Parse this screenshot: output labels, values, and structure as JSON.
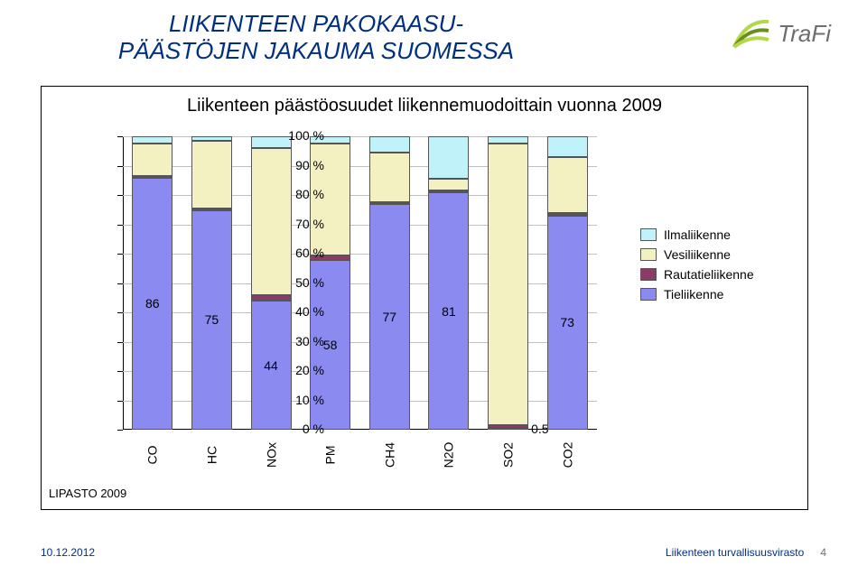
{
  "title_line1": "LIIKENTEEN PAKOKAASU-",
  "title_line2": "PÄÄSTÖJEN JAKAUMA SUOMESSA",
  "logo_text": "TraFi",
  "chart": {
    "type": "stacked-bar",
    "title": "Liikenteen päästöosuudet liikennemuodoittain vuonna 2009",
    "ylim": [
      0,
      100
    ],
    "ytick_step": 10,
    "ylabel_suffix": " %",
    "background_color": "#ffffff",
    "grid_color": "#c0c0c0",
    "categories": [
      "CO",
      "HC",
      "NOx",
      "PM",
      "CH4",
      "N2O",
      "SO2",
      "CO2"
    ],
    "series": [
      {
        "name": "Ilmaliikenne",
        "color": "#bff2f9"
      },
      {
        "name": "Vesiliikenne",
        "color": "#f3f0c1"
      },
      {
        "name": "Rautatieliikenne",
        "color": "#8e3a66"
      },
      {
        "name": "Tieliikenne",
        "color": "#8a8af0"
      }
    ],
    "data": {
      "CO": {
        "Tieliikenne": 86,
        "Rautatieliikenne": 0.5,
        "Vesiliikenne": 11,
        "Ilmaliikenne": 2.5
      },
      "HC": {
        "Tieliikenne": 75,
        "Rautatieliikenne": 0.5,
        "Vesiliikenne": 23,
        "Ilmaliikenne": 1.5
      },
      "NOx": {
        "Tieliikenne": 44,
        "Rautatieliikenne": 2,
        "Vesiliikenne": 50,
        "Ilmaliikenne": 4
      },
      "PM": {
        "Tieliikenne": 58,
        "Rautatieliikenne": 1.5,
        "Vesiliikenne": 38,
        "Ilmaliikenne": 2.5
      },
      "CH4": {
        "Tieliikenne": 77,
        "Rautatieliikenne": 0.5,
        "Vesiliikenne": 17,
        "Ilmaliikenne": 5.5
      },
      "N2O": {
        "Tieliikenne": 81,
        "Rautatieliikenne": 0.5,
        "Vesiliikenne": 4,
        "Ilmaliikenne": 14.5
      },
      "SO2": {
        "Tieliikenne": 0.5,
        "Rautatieliikenne": 1,
        "Vesiliikenne": 96,
        "Ilmaliikenne": 2.5
      },
      "CO2": {
        "Tieliikenne": 73,
        "Rautatieliikenne": 1,
        "Vesiliikenne": 19,
        "Ilmaliikenne": 7
      }
    },
    "bar_value_labels": {
      "CO": "86",
      "HC": "75",
      "NOx": "44",
      "PM": "58",
      "CH4": "77",
      "N2O": "81",
      "SO2": "0.5",
      "CO2": "73"
    },
    "source": "LIPASTO 2009"
  },
  "footer": {
    "date": "10.12.2012",
    "org": "Liikenteen turvallisuusvirasto",
    "page": "4"
  },
  "logo_svg_color1": "#6b8e23",
  "logo_svg_color2": "#b5d84a"
}
